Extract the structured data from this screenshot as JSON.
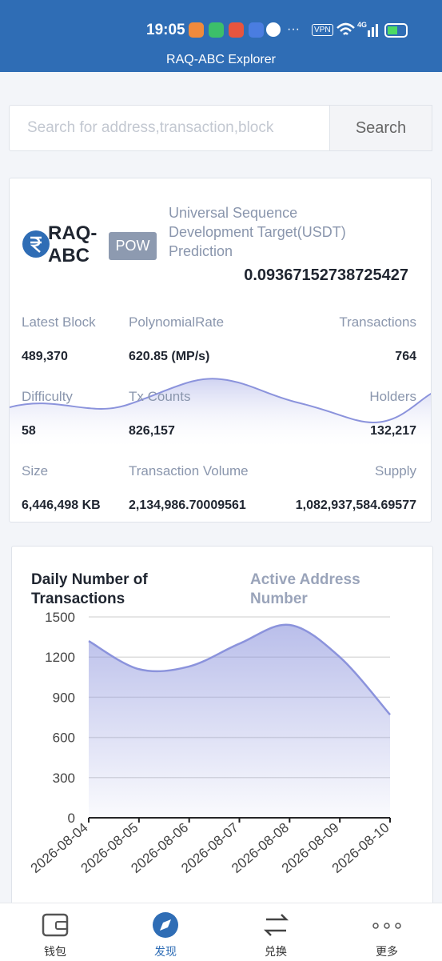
{
  "status_bar": {
    "time": "19:05",
    "vpn": "VPN",
    "network": "4G"
  },
  "header": {
    "title": "RAQ-ABC Explorer"
  },
  "search": {
    "placeholder": "Search for address,transaction,block",
    "button": "Search"
  },
  "summary": {
    "name": "RAQ-ABC",
    "badge": "POW",
    "prediction_label": "Universal Sequence Development Target(USDT) Prediction",
    "prediction_value": "0.09367152738725427",
    "stats": [
      {
        "label": "Latest Block",
        "value": "489,370"
      },
      {
        "label": "PolynomialRate",
        "value": "620.85 (MP/s)"
      },
      {
        "label": "Transactions",
        "value": "764"
      },
      {
        "label": "Difficulty",
        "value": "58"
      },
      {
        "label": "Tx Counts",
        "value": "826,157"
      },
      {
        "label": "Holders",
        "value": "132,217"
      },
      {
        "label": "Size",
        "value": "6,446,498 KB"
      },
      {
        "label": "Transaction Volume",
        "value": "2,134,986.70009561"
      },
      {
        "label": "Supply",
        "value": "1,082,937,584.69577"
      }
    ]
  },
  "chart_data": {
    "type": "area",
    "title": "Daily Number of Transactions",
    "tab": "Active Address Number",
    "x": [
      "2026-08-04",
      "2026-08-05",
      "2026-08-06",
      "2026-08-07",
      "2026-08-08",
      "2026-08-09",
      "2026-08-10"
    ],
    "values": [
      1320,
      1110,
      1130,
      1300,
      1440,
      1200,
      770
    ],
    "color": "#8b93dc",
    "ylim": [
      0,
      1500
    ],
    "yticks": [
      0,
      300,
      600,
      900,
      1200,
      1500
    ],
    "grid": true
  },
  "tabs": [
    "钱包",
    "发现",
    "兑换",
    "更多"
  ]
}
